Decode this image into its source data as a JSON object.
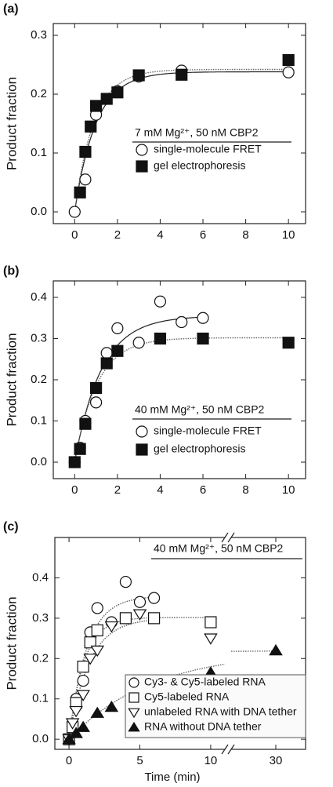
{
  "chart_data": [
    {
      "type": "scatter",
      "panel_label": "(a)",
      "ylabel": "Product fraction",
      "xlim": [
        -1,
        10.8
      ],
      "ylim": [
        -0.02,
        0.32
      ],
      "xticks": [
        0,
        2,
        4,
        6,
        8,
        10
      ],
      "yticks": [
        {
          "value": 0,
          "label": "0.0"
        },
        0.1,
        0.2,
        0.3
      ],
      "legend_title": "7 mM Mg²⁺, 50 nM CBP2",
      "series": [
        {
          "name": "single-molecule FRET",
          "marker": "circle",
          "filled": false,
          "x": [
            0,
            0.5,
            1,
            2,
            3,
            5,
            10
          ],
          "values": [
            0,
            0.055,
            0.165,
            0.205,
            0.23,
            0.24,
            0.237
          ],
          "fit": {
            "amplitude": 0.238,
            "rate": 1.0,
            "xmax": 10,
            "style": "solid"
          }
        },
        {
          "name": "gel electrophoresis",
          "marker": "square",
          "filled": true,
          "x": [
            0.25,
            0.5,
            0.75,
            1,
            1.5,
            2,
            3,
            5,
            10
          ],
          "values": [
            0.033,
            0.102,
            0.145,
            0.18,
            0.192,
            0.203,
            0.232,
            0.233,
            0.258
          ],
          "fit": {
            "amplitude": 0.242,
            "rate": 1.1,
            "xmax": 10,
            "style": "dotted"
          }
        }
      ]
    },
    {
      "type": "scatter",
      "panel_label": "(b)",
      "ylabel": "Product fraction",
      "xlim": [
        -1,
        10.8
      ],
      "ylim": [
        -0.04,
        0.44
      ],
      "xticks": [
        0,
        2,
        4,
        6,
        8,
        10
      ],
      "yticks": [
        {
          "value": 0,
          "label": "0.0"
        },
        0.1,
        0.2,
        0.3,
        0.4
      ],
      "legend_title": "40 mM Mg²⁺, 50 nM CBP2",
      "series": [
        {
          "name": "single-molecule FRET",
          "marker": "circle",
          "filled": false,
          "x": [
            0,
            0.25,
            0.5,
            1,
            1.5,
            2,
            3,
            4,
            5,
            6
          ],
          "values": [
            0,
            0.035,
            0.1,
            0.145,
            0.265,
            0.325,
            0.29,
            0.39,
            0.34,
            0.35
          ],
          "fit": {
            "amplitude": 0.355,
            "rate": 0.8,
            "xmax": 6,
            "style": "solid"
          }
        },
        {
          "name": "gel electrophoresis",
          "marker": "square",
          "filled": true,
          "x": [
            0,
            0.25,
            0.5,
            1,
            1.5,
            2,
            4,
            6,
            10
          ],
          "values": [
            0,
            0.032,
            0.093,
            0.18,
            0.24,
            0.27,
            0.3,
            0.3,
            0.29
          ],
          "fit": {
            "amplitude": 0.302,
            "rate": 0.95,
            "xmax": 10,
            "style": "dotted"
          }
        }
      ]
    },
    {
      "type": "scatter",
      "panel_label": "(c)",
      "ylabel": "Product fraction",
      "xlabel": "Time (min)",
      "xlim": [
        -1,
        32
      ],
      "xbreak": [
        11,
        27
      ],
      "ylim": [
        -0.025,
        0.5
      ],
      "xticks": [
        0,
        5,
        10,
        30
      ],
      "yticks": [
        {
          "value": 0,
          "label": "0.0"
        },
        0.1,
        0.2,
        0.3,
        0.4
      ],
      "legend_title": "40 mM Mg²⁺, 50 nM CBP2",
      "legend_box": true,
      "series": [
        {
          "name": "Cy3- & Cy5-labeled RNA",
          "marker": "circle",
          "filled": false,
          "x": [
            0,
            0.25,
            0.5,
            1,
            1.5,
            2,
            3,
            4,
            5,
            6
          ],
          "values": [
            0,
            0.035,
            0.1,
            0.145,
            0.265,
            0.325,
            0.29,
            0.39,
            0.34,
            0.35
          ],
          "fit": {
            "amplitude": 0.355,
            "rate": 0.8,
            "xmax": 6,
            "style": "dotted"
          }
        },
        {
          "name": "Cy5-labeled RNA",
          "marker": "square",
          "filled": false,
          "x": [
            0,
            0.25,
            0.5,
            1,
            1.5,
            2,
            4,
            6,
            10
          ],
          "values": [
            0,
            0.03,
            0.09,
            0.18,
            0.24,
            0.27,
            0.3,
            0.3,
            0.29
          ],
          "fit": {
            "amplitude": 0.302,
            "rate": 0.95,
            "xmax": 10,
            "style": "dotted"
          }
        },
        {
          "name": "unlabeled RNA with DNA tether",
          "marker": "triangle-down",
          "filled": false,
          "x": [
            0,
            0.25,
            0.5,
            1,
            1.5,
            2,
            3,
            5,
            10
          ],
          "values": [
            0,
            0.04,
            0.07,
            0.11,
            0.2,
            0.22,
            0.28,
            0.31,
            0.25
          ],
          "fit": {
            "amplitude": 0.3,
            "rate": 0.7,
            "xmax": 6,
            "style": "dotted"
          }
        },
        {
          "name": "RNA without DNA tether",
          "marker": "triangle-up",
          "filled": true,
          "x": [
            0,
            0.5,
            1,
            2,
            3,
            5,
            10,
            30
          ],
          "values": [
            0,
            0.015,
            0.03,
            0.065,
            0.08,
            0.13,
            0.165,
            0.22
          ],
          "fit": {
            "amplitude": 0.22,
            "rate": 0.17,
            "xmax": 30,
            "style": "dotted"
          }
        }
      ]
    }
  ]
}
